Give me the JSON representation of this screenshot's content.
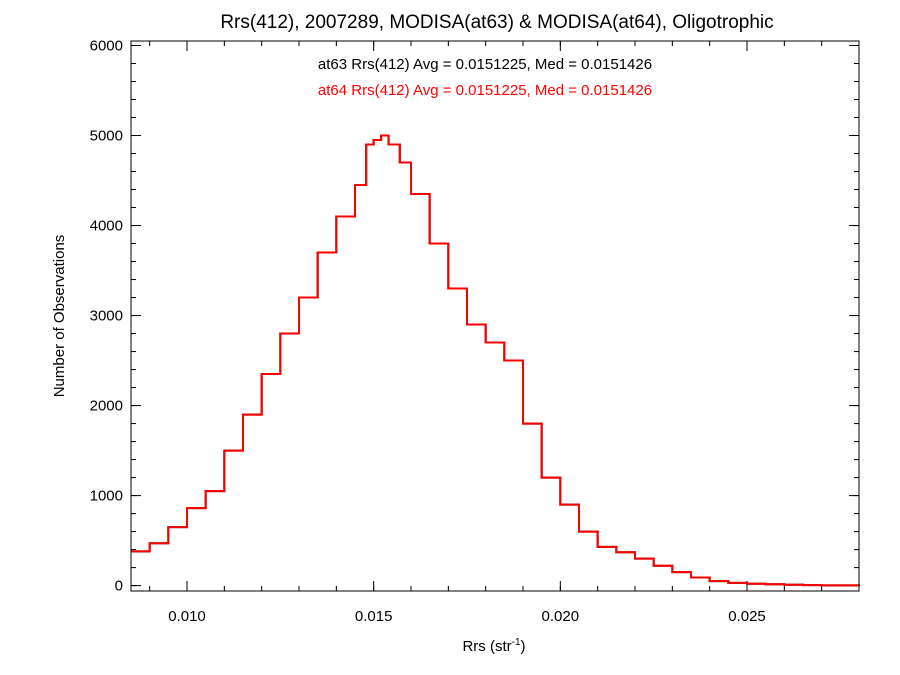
{
  "chart_data": {
    "type": "line",
    "style": "step-histogram",
    "title": "Rrs(412), 2007289, MODISA(at63) & MODISA(at64), Oligotrophic",
    "xlabel": "Rrs (str",
    "xlabel_sup": "-1",
    "xlabel_close": ")",
    "ylabel": "Number of Observations",
    "xlim": [
      0.0085,
      0.028
    ],
    "ylim": [
      -60,
      6050
    ],
    "xticks": [
      {
        "value": 0.01,
        "label": "0.010"
      },
      {
        "value": 0.015,
        "label": "0.015"
      },
      {
        "value": 0.02,
        "label": "0.020"
      },
      {
        "value": 0.025,
        "label": "0.025"
      }
    ],
    "yticks": [
      {
        "value": 0,
        "label": "0"
      },
      {
        "value": 1000,
        "label": "1000"
      },
      {
        "value": 2000,
        "label": "2000"
      },
      {
        "value": 3000,
        "label": "3000"
      },
      {
        "value": 4000,
        "label": "4000"
      },
      {
        "value": 5000,
        "label": "5000"
      },
      {
        "value": 6000,
        "label": "6000"
      }
    ],
    "x_minor_step": 0.001,
    "y_minor_step": 200,
    "grid": false,
    "annotations": [
      {
        "text": "at63 Rrs(412) Avg = 0.0151225, Med = 0.0151426",
        "color": "#000000"
      },
      {
        "text": "at64 Rrs(412) Avg = 0.0151225, Med = 0.0151426",
        "color": "#ff0000"
      }
    ],
    "series": [
      {
        "name": "at63",
        "color": "#000000",
        "x": [
          0.0085,
          0.009,
          0.0095,
          0.01,
          0.0105,
          0.011,
          0.0115,
          0.012,
          0.0125,
          0.013,
          0.0135,
          0.014,
          0.0145,
          0.0148,
          0.015,
          0.0152,
          0.0154,
          0.0157,
          0.016,
          0.0165,
          0.017,
          0.0175,
          0.018,
          0.0185,
          0.019,
          0.0195,
          0.02,
          0.0205,
          0.021,
          0.0215,
          0.022,
          0.0225,
          0.023,
          0.0235,
          0.024,
          0.0245,
          0.025,
          0.0255,
          0.026,
          0.0265,
          0.027,
          0.0275,
          0.028
        ],
        "y": [
          380,
          470,
          650,
          860,
          1050,
          1500,
          1900,
          2350,
          2800,
          3200,
          3700,
          4100,
          4450,
          4900,
          4950,
          5000,
          4900,
          4700,
          4350,
          3800,
          3300,
          2900,
          2700,
          2500,
          1800,
          1200,
          900,
          600,
          430,
          370,
          300,
          220,
          150,
          90,
          50,
          30,
          20,
          15,
          10,
          5,
          3,
          2,
          0
        ]
      },
      {
        "name": "at64",
        "color": "#ff0000",
        "x": [
          0.0085,
          0.009,
          0.0095,
          0.01,
          0.0105,
          0.011,
          0.0115,
          0.012,
          0.0125,
          0.013,
          0.0135,
          0.014,
          0.0145,
          0.0148,
          0.015,
          0.0152,
          0.0154,
          0.0157,
          0.016,
          0.0165,
          0.017,
          0.0175,
          0.018,
          0.0185,
          0.019,
          0.0195,
          0.02,
          0.0205,
          0.021,
          0.0215,
          0.022,
          0.0225,
          0.023,
          0.0235,
          0.024,
          0.0245,
          0.025,
          0.0255,
          0.026,
          0.0265,
          0.027,
          0.0275,
          0.028
        ],
        "y": [
          380,
          470,
          650,
          860,
          1050,
          1500,
          1900,
          2350,
          2800,
          3200,
          3700,
          4100,
          4450,
          4900,
          4950,
          5000,
          4900,
          4700,
          4350,
          3800,
          3300,
          2900,
          2700,
          2500,
          1800,
          1200,
          900,
          600,
          430,
          370,
          300,
          220,
          150,
          90,
          50,
          30,
          20,
          15,
          10,
          5,
          3,
          2,
          0
        ]
      }
    ]
  }
}
